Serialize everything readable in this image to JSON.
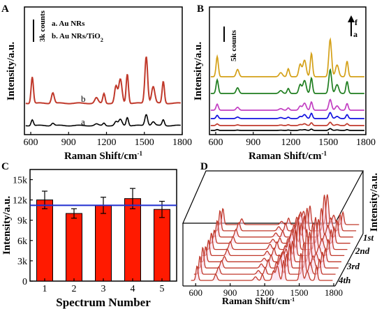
{
  "panel_labels": {
    "a": "A",
    "b": "B",
    "c": "C",
    "d": "D"
  },
  "colors": {
    "red_dark": "#c0392b",
    "black": "#000000",
    "gold": "#d4a017",
    "green": "#1e7d1e",
    "purple": "#c23ec2",
    "blue": "#1010e0",
    "bar_fill": "#ff1a00",
    "mean_line": "#1f2fd0"
  },
  "chart_data": [
    {
      "panel": "A",
      "type": "line",
      "xlabel_main": "Raman Shift/cm",
      "xlabel_sup": "-1",
      "ylabel": "Intensity/a.u.",
      "xlim": [
        550,
        1800
      ],
      "x_ticks": [
        "600",
        "900",
        "1200",
        "1500",
        "1800"
      ],
      "scale_label": "3k counts",
      "legend": [
        "a. Au NRs",
        "b. Au NRs/TiO"
      ],
      "legend_sub": "2",
      "curve_labels": [
        "a",
        "b"
      ],
      "series": [
        {
          "label": "a",
          "color": "#000000",
          "baseline": 0,
          "scale": 0.25
        },
        {
          "label": "b",
          "color": "#c0392b",
          "baseline": 1,
          "scale": 1.0
        }
      ],
      "peaks": [
        [
          612,
          0.72
        ],
        [
          775,
          0.3
        ],
        [
          1120,
          0.18
        ],
        [
          1180,
          0.3
        ],
        [
          1275,
          0.45
        ],
        [
          1310,
          0.72
        ],
        [
          1365,
          1.0
        ],
        [
          1515,
          1.35
        ],
        [
          1570,
          0.45
        ],
        [
          1650,
          0.7
        ]
      ]
    },
    {
      "panel": "B",
      "type": "line",
      "xlabel_main": "Raman Shift/cm",
      "xlabel_sup": "-1",
      "ylabel": "Intensity/a.u.",
      "xlim": [
        550,
        1800
      ],
      "x_ticks": [
        "600",
        "900",
        "1200",
        "1500",
        "1800"
      ],
      "scale_label": "5k counts",
      "arrow_labels": {
        "top": "f",
        "bottom": "a"
      },
      "series": [
        {
          "color": "#000000",
          "scale": 0.05
        },
        {
          "color": "#c0392b",
          "scale": 0.1
        },
        {
          "color": "#1010e0",
          "scale": 0.2
        },
        {
          "color": "#c23ec2",
          "scale": 0.35
        },
        {
          "color": "#1e7d1e",
          "scale": 0.7
        },
        {
          "color": "#d4a017",
          "scale": 1.0
        }
      ]
    },
    {
      "panel": "C",
      "type": "bar",
      "xlabel": "Spectrum Number",
      "ylabel": "Intensity/a.u.",
      "categories": [
        "1",
        "2",
        "3",
        "4",
        "5"
      ],
      "values": [
        12000,
        10000,
        11200,
        12200,
        10600
      ],
      "errors": [
        1300,
        700,
        1200,
        1500,
        1200
      ],
      "mean_line": 11200,
      "ylim": [
        0,
        16500
      ],
      "y_ticks": [
        0,
        3000,
        6000,
        9000,
        12000,
        15000
      ],
      "y_tick_labels": [
        "0",
        "3k",
        "6k",
        "9k",
        "12k",
        "15k"
      ]
    },
    {
      "panel": "D",
      "type": "line",
      "xlabel_main": "Raman Shift/cm",
      "xlabel_sup": "-1",
      "ylabel": "Intensity/a.u.",
      "xlim": [
        550,
        1800
      ],
      "x_ticks": [
        "600",
        "900",
        "1200",
        "1500",
        "1800"
      ],
      "depth_labels": [
        "1st",
        "2nd",
        "3rd",
        "4th"
      ],
      "traces": 10,
      "line_color": "#c0392b"
    }
  ]
}
